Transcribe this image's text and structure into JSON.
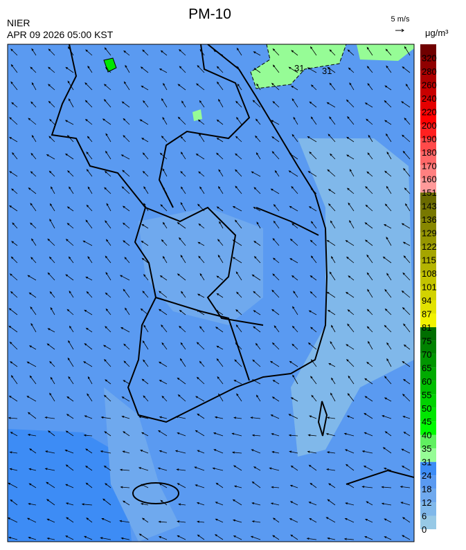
{
  "header": {
    "title": "PM-10",
    "source": "NIER",
    "time": "APR 09 2026 05:00 KST",
    "wind_scale": "5 m/s"
  },
  "contour_labels": [
    "31",
    "31"
  ],
  "legend": {
    "unit": "μg/m³",
    "levels": [
      {
        "value": 0,
        "color": "#97c9e6"
      },
      {
        "value": 6,
        "color": "#80b8ea"
      },
      {
        "value": 12,
        "color": "#6fa9ee"
      },
      {
        "value": 18,
        "color": "#5a9af1"
      },
      {
        "value": 24,
        "color": "#3d8cf5"
      },
      {
        "value": 31,
        "color": "#96fc96"
      },
      {
        "value": 35,
        "color": "#60f060"
      },
      {
        "value": 40,
        "color": "#00fa00"
      },
      {
        "value": 45,
        "color": "#00e600"
      },
      {
        "value": 50,
        "color": "#00d200"
      },
      {
        "value": 55,
        "color": "#00be00"
      },
      {
        "value": 60,
        "color": "#00aa00"
      },
      {
        "value": 65,
        "color": "#009600"
      },
      {
        "value": 70,
        "color": "#008200"
      },
      {
        "value": 75,
        "color": "#006e00"
      },
      {
        "value": 81,
        "color": "#f2f200"
      },
      {
        "value": 87,
        "color": "#e2e200"
      },
      {
        "value": 94,
        "color": "#d2d200"
      },
      {
        "value": 101,
        "color": "#c3c300"
      },
      {
        "value": 108,
        "color": "#b4b400"
      },
      {
        "value": 115,
        "color": "#a5a500"
      },
      {
        "value": 122,
        "color": "#969600"
      },
      {
        "value": 129,
        "color": "#878700"
      },
      {
        "value": 136,
        "color": "#787800"
      },
      {
        "value": 143,
        "color": "#6a6a00"
      },
      {
        "value": 151,
        "color": "#ff9a9a"
      },
      {
        "value": 160,
        "color": "#ff8080"
      },
      {
        "value": 170,
        "color": "#ff6868"
      },
      {
        "value": 180,
        "color": "#ff4a4a"
      },
      {
        "value": 190,
        "color": "#ff2020"
      },
      {
        "value": 200,
        "color": "#ff0000"
      },
      {
        "value": 220,
        "color": "#e40000"
      },
      {
        "value": 240,
        "color": "#c80000"
      },
      {
        "value": 260,
        "color": "#ac0000"
      },
      {
        "value": 280,
        "color": "#900000"
      },
      {
        "value": 320,
        "color": "#700000"
      }
    ]
  }
}
